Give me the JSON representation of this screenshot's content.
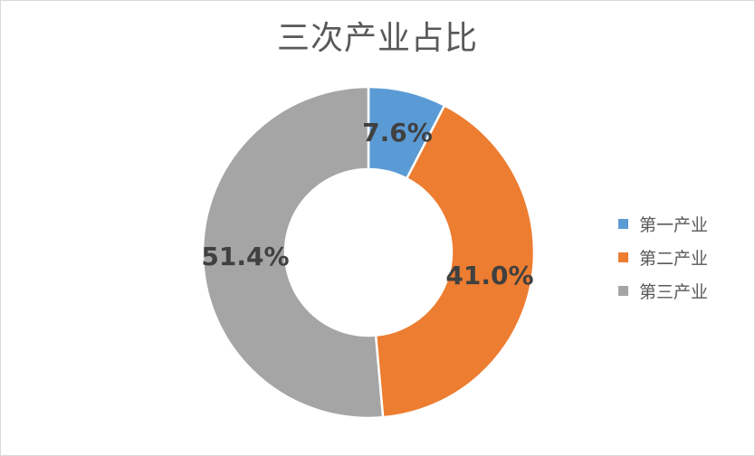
{
  "chart_data": {
    "type": "pie",
    "variant": "donut",
    "title": "三次产业占比",
    "categories": [
      "第一产业",
      "第二产业",
      "第三产业"
    ],
    "values": [
      7.6,
      41.0,
      51.4
    ],
    "value_labels": [
      "7.6%",
      "41.0%",
      "51.4%"
    ],
    "colors": [
      "#5b9bd5",
      "#ed7d31",
      "#a5a5a5"
    ],
    "legend_position": "right",
    "start_angle_deg": 0,
    "direction": "clockwise"
  }
}
